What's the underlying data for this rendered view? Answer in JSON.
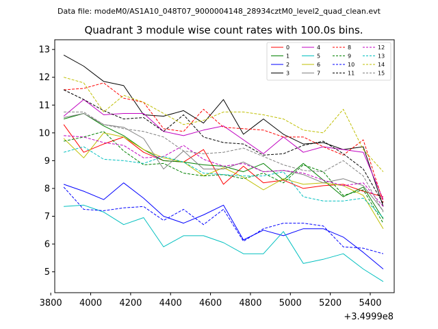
{
  "chart_data": {
    "type": "line",
    "suptitle": "Data file: modeM0/AS1A10_048T07_9000004148_28934cztM0_level2_quad_clean.evt",
    "title": "Quadrant 3 module wise count rates with 100.0s bins.",
    "xlabel": "",
    "ylabel": "",
    "x_offset_label": "+3.4999e8",
    "xlim": [
      3820,
      5520
    ],
    "ylim": [
      4.25,
      13.35
    ],
    "xticks": [
      3800,
      4000,
      4200,
      4400,
      4600,
      4800,
      5000,
      5200,
      5400
    ],
    "yticks": [
      5,
      6,
      7,
      8,
      9,
      10,
      11,
      12,
      13
    ],
    "grid": false,
    "legend_position": "top-right",
    "x": [
      3865,
      3965,
      4065,
      4165,
      4265,
      4365,
      4465,
      4565,
      4665,
      4765,
      4865,
      4965,
      5065,
      5165,
      5265,
      5365,
      5465
    ],
    "series": [
      {
        "name": "0",
        "color": "#ff0000",
        "dash": false,
        "values": [
          10.3,
          9.3,
          9.6,
          9.85,
          9.3,
          9.0,
          8.95,
          9.4,
          8.15,
          8.8,
          8.2,
          8.3,
          8.0,
          8.1,
          8.15,
          7.9,
          7.7
        ]
      },
      {
        "name": "1",
        "color": "#008000",
        "dash": false,
        "values": [
          10.5,
          10.7,
          10.25,
          9.9,
          9.4,
          9.0,
          8.95,
          8.85,
          8.8,
          8.6,
          8.9,
          8.3,
          8.9,
          8.3,
          7.7,
          8.05,
          6.9
        ]
      },
      {
        "name": "2",
        "color": "#0000ff",
        "dash": false,
        "values": [
          8.15,
          7.9,
          7.6,
          8.2,
          7.65,
          7.0,
          6.75,
          7.05,
          7.4,
          6.15,
          6.5,
          6.3,
          6.55,
          6.55,
          6.25,
          5.7,
          5.1
        ]
      },
      {
        "name": "3",
        "color": "#000000",
        "dash": false,
        "values": [
          12.8,
          12.4,
          11.85,
          11.7,
          10.65,
          10.6,
          10.8,
          10.35,
          11.2,
          9.95,
          10.5,
          9.95,
          9.6,
          9.65,
          9.4,
          9.5,
          7.35
        ]
      },
      {
        "name": "4",
        "color": "#c000c0",
        "dash": false,
        "values": [
          10.6,
          11.2,
          10.65,
          10.7,
          10.7,
          10.05,
          9.9,
          10.1,
          10.25,
          9.75,
          9.25,
          9.85,
          9.3,
          9.5,
          9.4,
          9.3,
          7.6
        ]
      },
      {
        "name": "5",
        "color": "#00bfbf",
        "dash": false,
        "values": [
          7.35,
          7.4,
          7.15,
          6.7,
          6.95,
          5.9,
          6.3,
          6.3,
          6.05,
          5.65,
          5.65,
          6.45,
          5.3,
          5.45,
          5.65,
          5.1,
          4.65
        ]
      },
      {
        "name": "6",
        "color": "#bfbf00",
        "dash": false,
        "values": [
          9.8,
          9.1,
          10.0,
          9.85,
          9.4,
          9.1,
          8.95,
          8.45,
          8.75,
          8.4,
          7.95,
          8.35,
          8.15,
          8.2,
          8.1,
          7.75,
          6.55
        ]
      },
      {
        "name": "7",
        "color": "#808080",
        "dash": false,
        "values": [
          10.55,
          10.7,
          10.3,
          10.2,
          9.8,
          8.7,
          9.35,
          8.7,
          8.7,
          8.95,
          8.6,
          8.65,
          8.5,
          8.2,
          8.35,
          8.1,
          7.2
        ]
      },
      {
        "name": "8",
        "color": "#ff0000",
        "dash": true,
        "values": [
          11.55,
          11.6,
          11.8,
          11.25,
          11.1,
          10.15,
          10.05,
          10.85,
          10.2,
          10.15,
          10.1,
          9.85,
          9.85,
          9.5,
          9.2,
          9.75,
          7.5
        ]
      },
      {
        "name": "9",
        "color": "#008000",
        "dash": true,
        "values": [
          9.7,
          9.85,
          10.05,
          9.35,
          8.85,
          8.9,
          8.55,
          8.45,
          8.5,
          8.35,
          8.55,
          8.2,
          8.85,
          8.6,
          7.75,
          7.95,
          6.75
        ]
      },
      {
        "name": "10",
        "color": "#0000ff",
        "dash": true,
        "values": [
          8.05,
          7.25,
          7.2,
          7.3,
          7.35,
          6.85,
          7.25,
          6.7,
          7.25,
          6.1,
          6.55,
          6.75,
          6.75,
          6.65,
          5.9,
          5.85,
          5.65
        ]
      },
      {
        "name": "11",
        "color": "#000000",
        "dash": true,
        "values": [
          11.55,
          11.2,
          10.8,
          10.5,
          10.55,
          10.05,
          10.65,
          9.85,
          9.65,
          9.6,
          9.2,
          9.25,
          9.55,
          9.7,
          9.25,
          8.7,
          7.45
        ]
      },
      {
        "name": "12",
        "color": "#c000c0",
        "dash": true,
        "values": [
          9.9,
          9.85,
          9.65,
          9.55,
          9.1,
          9.15,
          9.55,
          9.05,
          8.8,
          8.9,
          8.6,
          8.65,
          8.55,
          8.3,
          8.1,
          8.2,
          7.35
        ]
      },
      {
        "name": "13",
        "color": "#00bfbf",
        "dash": true,
        "values": [
          9.3,
          9.5,
          9.05,
          9.0,
          8.9,
          9.15,
          8.95,
          8.55,
          8.5,
          8.45,
          8.45,
          8.6,
          7.7,
          7.55,
          7.55,
          7.65,
          6.95
        ]
      },
      {
        "name": "14",
        "color": "#bfbf00",
        "dash": true,
        "values": [
          12.0,
          11.8,
          10.75,
          11.35,
          11.1,
          10.7,
          10.3,
          10.45,
          10.75,
          10.75,
          10.65,
          10.5,
          10.1,
          10.0,
          10.85,
          9.4,
          8.6
        ]
      },
      {
        "name": "15",
        "color": "#808080",
        "dash": true,
        "values": [
          10.75,
          10.75,
          10.3,
          10.15,
          10.05,
          9.85,
          9.35,
          9.25,
          9.3,
          9.45,
          9.15,
          8.85,
          8.65,
          8.6,
          9.0,
          8.45,
          7.15
        ]
      }
    ]
  }
}
